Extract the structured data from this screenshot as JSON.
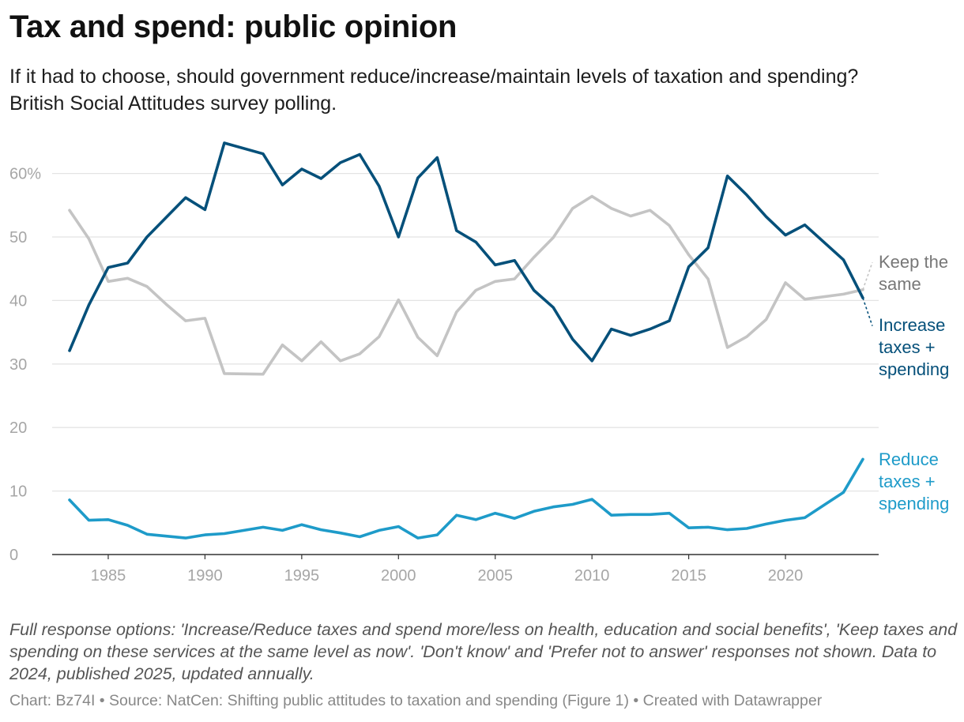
{
  "header": {
    "title": "Tax and spend: public opinion",
    "subtitle": "If it had to choose, should government reduce/increase/maintain levels of taxation and spending? British Social Attitudes survey polling."
  },
  "chart_data": {
    "type": "line",
    "title": "Tax and spend: public opinion",
    "xlabel": "",
    "ylabel": "",
    "ylim": [
      0,
      65
    ],
    "xlim": [
      1983,
      2024
    ],
    "yticks": [
      0,
      10,
      20,
      30,
      40,
      50,
      60
    ],
    "ytick_labels": [
      "0",
      "10",
      "20",
      "30",
      "40",
      "50",
      "60%"
    ],
    "xticks": [
      1985,
      1990,
      1995,
      2000,
      2005,
      2010,
      2015,
      2020
    ],
    "xtick_labels": [
      "1985",
      "1990",
      "1995",
      "2000",
      "2005",
      "2010",
      "2015",
      "2020"
    ],
    "grid": true,
    "legend": "inline labels at line ends (right)",
    "x": [
      1983,
      1984,
      1985,
      1986,
      1987,
      1988,
      1989,
      1990,
      1991,
      1993,
      1994,
      1995,
      1996,
      1997,
      1998,
      1999,
      2000,
      2001,
      2002,
      2003,
      2004,
      2005,
      2006,
      2007,
      2008,
      2009,
      2010,
      2011,
      2012,
      2013,
      2014,
      2015,
      2016,
      2017,
      2018,
      2019,
      2020,
      2021,
      2023,
      2024
    ],
    "series": [
      {
        "name": "Keep the same",
        "label_lines": [
          "Keep the",
          "same"
        ],
        "color": "#c4c4c4",
        "label_color": "#777777",
        "values": [
          54.2,
          49.7,
          43.0,
          43.5,
          42.2,
          39.4,
          36.8,
          37.2,
          28.5,
          28.4,
          33.0,
          30.5,
          33.5,
          30.5,
          31.6,
          34.3,
          40.1,
          34.2,
          31.3,
          38.2,
          41.6,
          43.0,
          43.4,
          46.8,
          49.9,
          54.5,
          56.4,
          54.5,
          53.3,
          54.2,
          51.8,
          47.2,
          43.4,
          32.6,
          34.3,
          37.0,
          42.8,
          40.2,
          41.0,
          41.7
        ]
      },
      {
        "name": "Increase taxes + spending",
        "label_lines": [
          "Increase",
          "taxes +",
          "spending"
        ],
        "color": "#05507a",
        "label_color": "#05507a",
        "values": [
          32.1,
          39.3,
          45.2,
          45.9,
          50.0,
          53.1,
          56.2,
          54.3,
          64.8,
          63.1,
          58.2,
          60.7,
          59.2,
          61.7,
          63.0,
          58.0,
          50.0,
          59.3,
          62.5,
          51.0,
          49.2,
          45.6,
          46.3,
          41.6,
          38.9,
          33.9,
          30.5,
          35.5,
          34.5,
          35.5,
          36.8,
          45.3,
          48.3,
          59.6,
          56.6,
          53.2,
          50.3,
          51.9,
          46.4,
          40.4
        ]
      },
      {
        "name": "Reduce taxes + spending",
        "label_lines": [
          "Reduce",
          "taxes +",
          "spending"
        ],
        "color": "#1e9bc9",
        "label_color": "#1e9bc9",
        "values": [
          8.6,
          5.4,
          5.5,
          4.6,
          3.2,
          2.9,
          2.6,
          3.1,
          3.3,
          4.3,
          3.8,
          4.7,
          3.9,
          3.4,
          2.8,
          3.8,
          4.4,
          2.6,
          3.1,
          6.2,
          5.5,
          6.5,
          5.7,
          6.8,
          7.5,
          7.9,
          8.7,
          6.2,
          6.3,
          6.3,
          6.5,
          4.2,
          4.3,
          3.9,
          4.1,
          4.8,
          5.4,
          5.8,
          9.8,
          15.0
        ]
      }
    ],
    "dashed_tail": {
      "Keep the same": [
        2024,
        2025,
        46.0
      ],
      "Increase taxes + spending": [
        2024,
        2025,
        36.0
      ]
    }
  },
  "footer": {
    "notes": "Full response options: 'Increase/Reduce taxes and spend more/less on health, education and social benefits', 'Keep taxes and spending on these services at the same level as now'. 'Don't know' and 'Prefer not to answer' responses not shown. Data to 2024, published 2025, updated annually.",
    "byline": "Chart: Bz74I • Source: NatCen: Shifting public attitudes to taxation and spending (Figure 1) • Created with Datawrapper"
  },
  "colors": {
    "grid": "#e4e4e4",
    "tick_text": "#a6a6a6",
    "axis_line": "#333333"
  }
}
